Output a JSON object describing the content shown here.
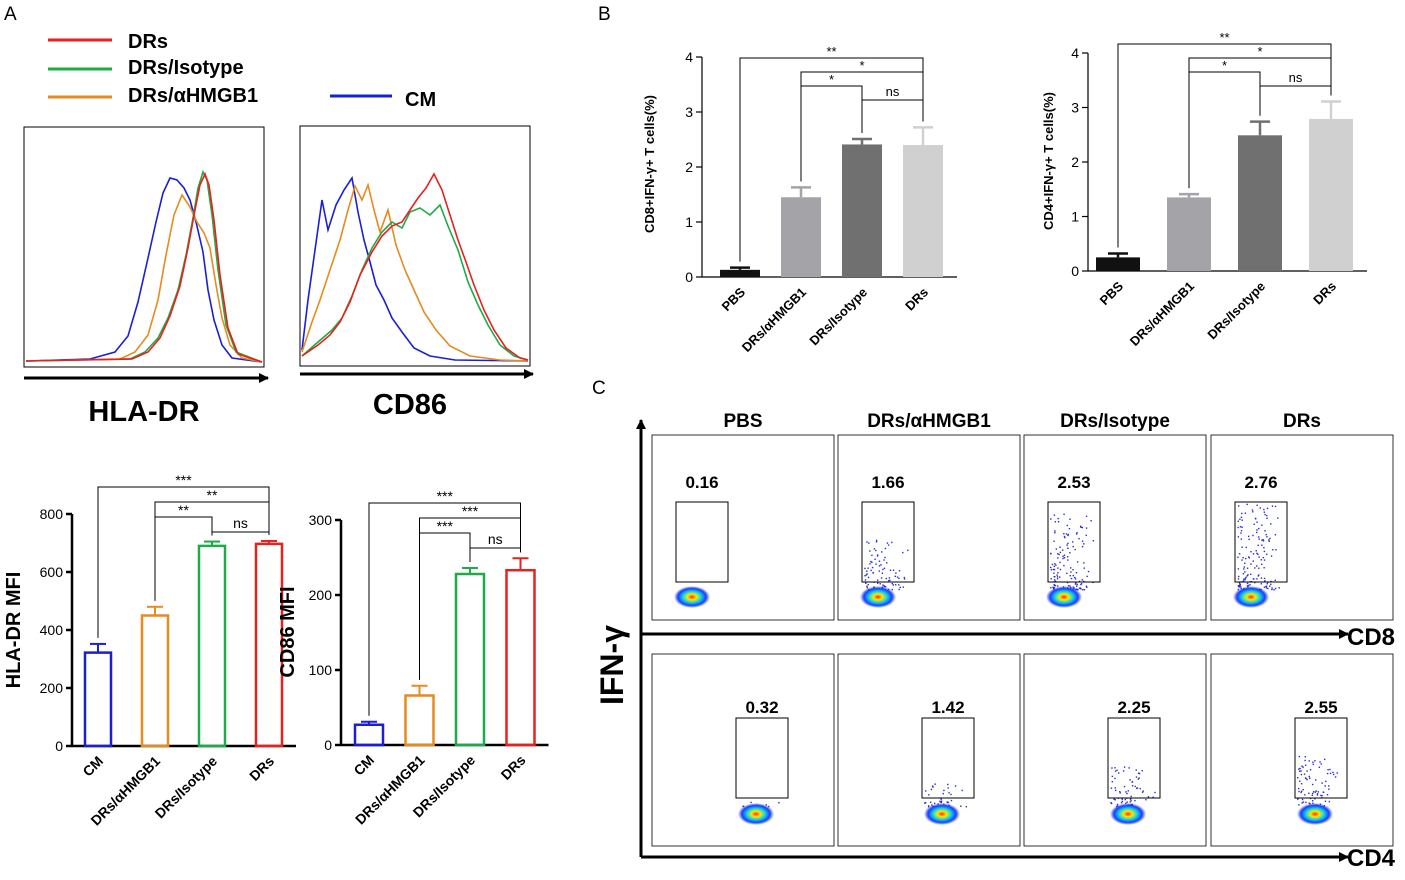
{
  "panel_labels": {
    "A": "A",
    "B": "B",
    "C": "C"
  },
  "colors": {
    "DRs": "#e8211d",
    "DRs_Isotype": "#1faa4a",
    "DRs_aHMGB1": "#e68b1e",
    "CM": "#1a1fd6",
    "PBS": "#111111",
    "bar_aHMGB1": "#a3a3a8",
    "bar_Isotype": "#707070",
    "bar_DRs": "#d0d0d0"
  },
  "legend": {
    "entries": [
      {
        "key": "DRs",
        "label": "DRs"
      },
      {
        "key": "DRs_Isotype",
        "label": "DRs/Isotype"
      },
      {
        "key": "DRs_aHMGB1",
        "label": "DRs/αHMGB1"
      },
      {
        "key": "CM",
        "label": "CM"
      }
    ]
  },
  "histograms": {
    "hla": {
      "xlabel": "HLA-DR"
    },
    "cd86": {
      "xlabel": "CD86"
    }
  },
  "flow": {
    "col_titles": [
      "PBS",
      "DRs/αHMGB1",
      "DRs/Isotype",
      "DRs"
    ],
    "y_axis": "IFN-γ",
    "row_axes": [
      "CD8",
      "CD4"
    ],
    "cd8_values": [
      "0.16",
      "1.66",
      "2.53",
      "2.76"
    ],
    "cd4_values": [
      "0.32",
      "1.42",
      "2.25",
      "2.55"
    ]
  },
  "chart_data": [
    {
      "id": "hla_mfi",
      "type": "bar",
      "title": "",
      "categories": [
        "CM",
        "DRs/αHMGB1",
        "DRs/Isotype",
        "DRs"
      ],
      "values": [
        322,
        450,
        690,
        697
      ],
      "errors": [
        30,
        30,
        15,
        10
      ],
      "ylabel": "HLA-DR MFI",
      "ylim": [
        0,
        800
      ],
      "yticks": [
        0,
        200,
        400,
        600,
        800
      ],
      "fill": "open",
      "bar_colors": [
        "#1a1fd6",
        "#e68b1e",
        "#1faa4a",
        "#e8211d"
      ],
      "significance": [
        {
          "from": 0,
          "to": 3,
          "label": "***"
        },
        {
          "from": 1,
          "to": 3,
          "label": "**"
        },
        {
          "from": 1,
          "to": 2,
          "label": "**"
        },
        {
          "from": 2,
          "to": 3,
          "label": "ns"
        }
      ]
    },
    {
      "id": "cd86_mfi",
      "type": "bar",
      "title": "",
      "categories": [
        "CM",
        "DRs/αHMGB1",
        "DRs/Isotype",
        "DRs"
      ],
      "values": [
        27,
        66,
        228,
        233
      ],
      "errors": [
        4,
        13,
        8,
        16
      ],
      "ylabel": "CD86 MFI",
      "ylim": [
        0,
        300
      ],
      "yticks": [
        0,
        100,
        200,
        300
      ],
      "fill": "open",
      "bar_colors": [
        "#1a1fd6",
        "#e68b1e",
        "#1faa4a",
        "#e8211d"
      ],
      "significance": [
        {
          "from": 0,
          "to": 3,
          "label": "***"
        },
        {
          "from": 1,
          "to": 3,
          "label": "***"
        },
        {
          "from": 1,
          "to": 2,
          "label": "***"
        },
        {
          "from": 2,
          "to": 3,
          "label": "ns"
        }
      ]
    },
    {
      "id": "cd8_ifng",
      "type": "bar",
      "title": "",
      "categories": [
        "PBS",
        "DRs/αHMGB1",
        "DRs/Isotype",
        "DRs"
      ],
      "values": [
        0.13,
        1.45,
        2.41,
        2.4
      ],
      "errors": [
        0.04,
        0.18,
        0.1,
        0.32
      ],
      "ylabel": "CD8+IFN-γ+ T cells(%)",
      "ylim": [
        0,
        4
      ],
      "yticks": [
        0,
        1,
        2,
        3,
        4
      ],
      "fill": "solid",
      "bar_colors": [
        "#111111",
        "#a3a3a8",
        "#707070",
        "#d0d0d0"
      ],
      "significance": [
        {
          "from": 0,
          "to": 3,
          "label": "**"
        },
        {
          "from": 1,
          "to": 3,
          "label": "*"
        },
        {
          "from": 1,
          "to": 2,
          "label": "*"
        },
        {
          "from": 2,
          "to": 3,
          "label": "ns"
        }
      ]
    },
    {
      "id": "cd4_ifng",
      "type": "bar",
      "title": "",
      "categories": [
        "PBS",
        "DRs/αHMGB1",
        "DRs/Isotype",
        "DRs"
      ],
      "values": [
        0.25,
        1.35,
        2.49,
        2.79
      ],
      "errors": [
        0.07,
        0.06,
        0.25,
        0.32
      ],
      "ylabel": "CD4+IFN-γ+ T cells(%)",
      "ylim": [
        0,
        4
      ],
      "yticks": [
        0,
        1,
        2,
        3,
        4
      ],
      "fill": "solid",
      "bar_colors": [
        "#111111",
        "#a3a3a8",
        "#707070",
        "#d0d0d0"
      ],
      "significance": [
        {
          "from": 0,
          "to": 3,
          "label": "**"
        },
        {
          "from": 1,
          "to": 3,
          "label": "*"
        },
        {
          "from": 1,
          "to": 2,
          "label": "*"
        },
        {
          "from": 2,
          "to": 3,
          "label": "ns"
        }
      ]
    }
  ]
}
